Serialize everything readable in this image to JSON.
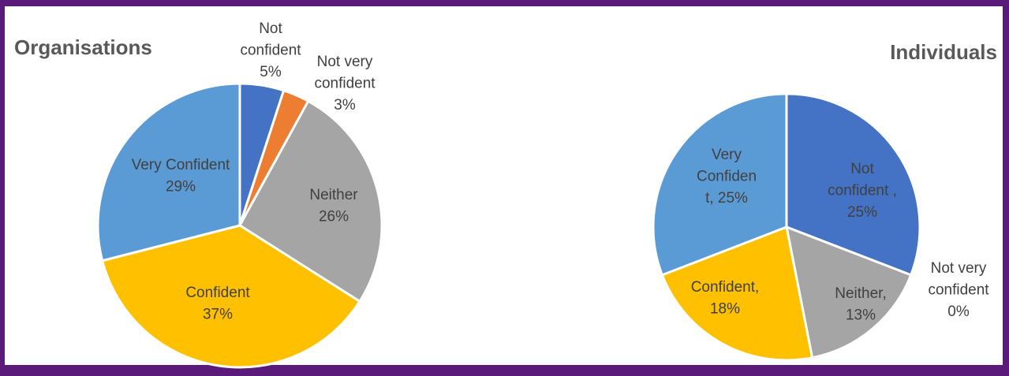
{
  "chart_data": [
    {
      "type": "pie",
      "title": "Organisations",
      "slices": [
        {
          "label": "Not confident",
          "value": 5,
          "display": [
            "Not",
            "confident",
            "5%"
          ],
          "color": "#4472c4"
        },
        {
          "label": "Not very confident",
          "value": 3,
          "display": [
            "Not very",
            "confident",
            "3%"
          ],
          "color": "#ed7d31"
        },
        {
          "label": "Neither",
          "value": 26,
          "display": [
            "Neither",
            "26%"
          ],
          "color": "#a5a5a5"
        },
        {
          "label": "Confident",
          "value": 37,
          "display": [
            "Confident",
            "37%"
          ],
          "color": "#ffc000"
        },
        {
          "label": "Very Confident",
          "value": 29,
          "display": [
            "Very Confident",
            "29%"
          ],
          "color": "#5b9bd5"
        }
      ]
    },
    {
      "type": "pie",
      "title": "Individuals",
      "slices": [
        {
          "label": "Not confident",
          "value": 25,
          "display": [
            "Not",
            "confident ,",
            "25%"
          ],
          "color": "#4472c4"
        },
        {
          "label": "Not very confident",
          "value": 0,
          "display": [
            "Not very",
            "confident",
            "0%"
          ],
          "color": "#ed7d31"
        },
        {
          "label": "Neither",
          "value": 13,
          "display": [
            "Neither,",
            "13%"
          ],
          "color": "#a5a5a5"
        },
        {
          "label": "Confident",
          "value": 18,
          "display": [
            "Confident,",
            "18%"
          ],
          "color": "#ffc000"
        },
        {
          "label": "Very Confident",
          "value": 25,
          "display": [
            "Very",
            "Confiden",
            "t, 25%"
          ],
          "color": "#5b9bd5"
        }
      ]
    }
  ]
}
